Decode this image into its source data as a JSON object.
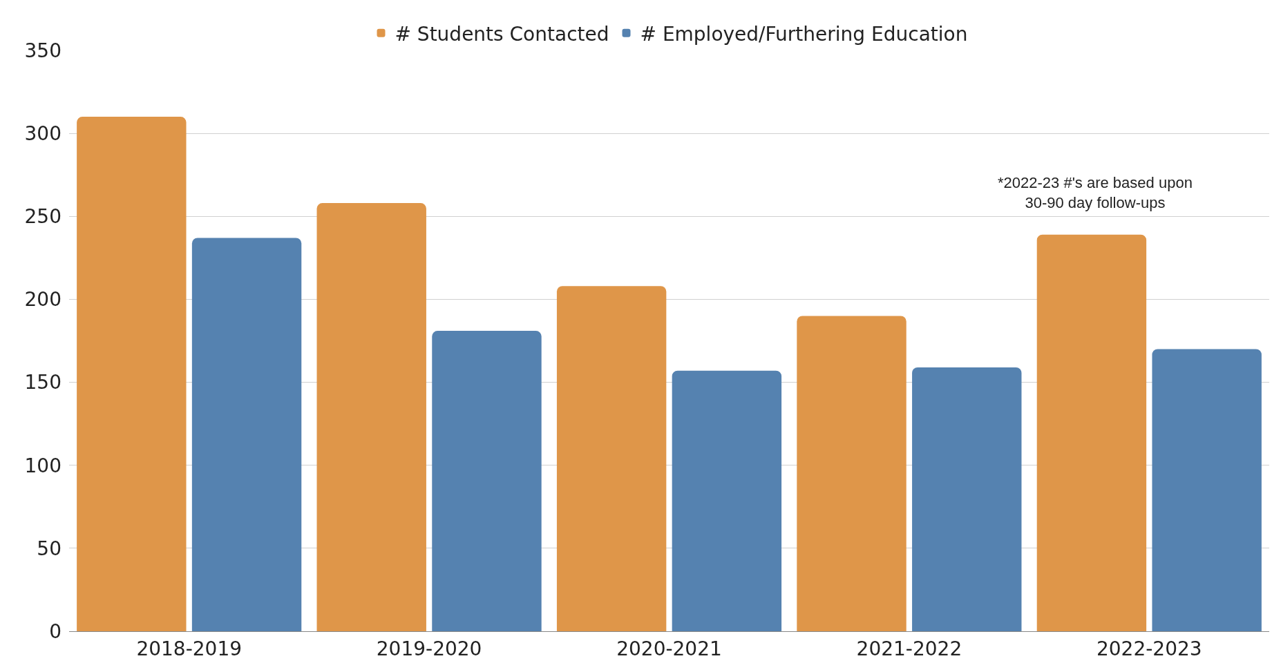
{
  "chart_data": {
    "type": "bar",
    "categories": [
      "2018-2019",
      "2019-2020",
      "2020-2021",
      "2021-2022",
      "2022-2023"
    ],
    "series": [
      {
        "name": "# Students Contacted",
        "color": "#df9649",
        "values": [
          310,
          258,
          208,
          190,
          239
        ]
      },
      {
        "name": "# Employed/Furthering Education",
        "color": "#5582b0",
        "values": [
          237,
          181,
          157,
          159,
          170
        ]
      }
    ],
    "ylim": [
      0,
      350
    ],
    "yticks": [
      0,
      50,
      100,
      150,
      200,
      250,
      300,
      350
    ],
    "grid": "y",
    "legend": "top",
    "annotations": [
      "*2022-23 #'s are based upon\n30-90 day follow-ups"
    ]
  }
}
